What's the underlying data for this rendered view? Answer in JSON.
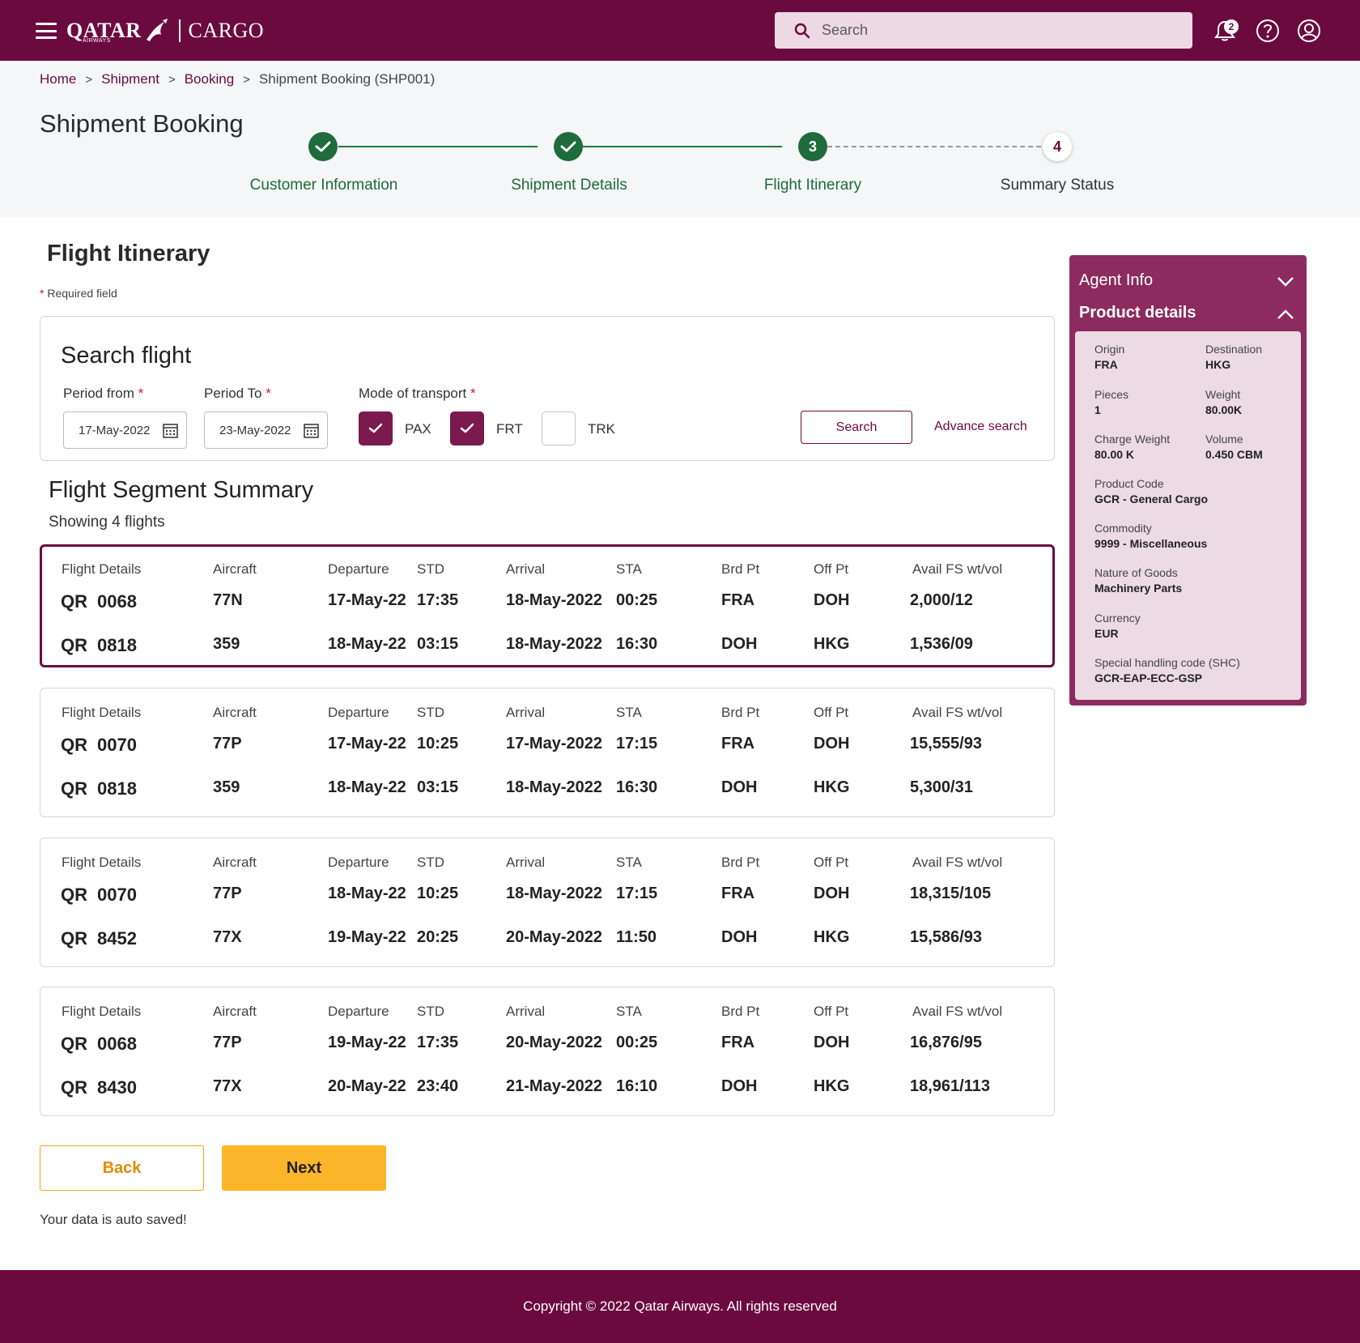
{
  "colors": {
    "brand": "#6b0a3f",
    "success": "#1e6b3c",
    "accent": "#fbb52b"
  },
  "header": {
    "brand_primary": "QATAR",
    "brand_sub": "AIRWAYS",
    "brand_product": "CARGO",
    "search_placeholder": "Search",
    "notification_count": "2",
    "icons": [
      "menu-icon",
      "search-icon",
      "bell-icon",
      "help-icon",
      "user-icon"
    ]
  },
  "breadcrumb": [
    "Home",
    "Shipment",
    "Booking",
    "Shipment Booking (SHP001)"
  ],
  "page_title": "Shipment Booking",
  "stepper": {
    "steps": [
      {
        "label": "Customer Information",
        "state": "done",
        "number": "1"
      },
      {
        "label": "Shipment Details",
        "state": "done",
        "number": "2"
      },
      {
        "label": "Flight Itinerary",
        "state": "active",
        "number": "3"
      },
      {
        "label": "Summary Status",
        "state": "todo",
        "number": "4"
      }
    ]
  },
  "main": {
    "section_title": "Flight Itinerary",
    "required_note": "Required field",
    "required_marker": "*",
    "search_panel": {
      "title": "Search flight",
      "period_from_label": "Period from",
      "period_from_value": "17-May-2022",
      "period_to_label": "Period To",
      "period_to_value": "23-May-2022",
      "mode_label": "Mode of transport",
      "modes": [
        {
          "label": "PAX",
          "checked": true
        },
        {
          "label": "FRT",
          "checked": true
        },
        {
          "label": "TRK",
          "checked": false
        }
      ],
      "search_button": "Search",
      "advance_search": "Advance search"
    },
    "segment_title": "Flight Segment Summary",
    "segment_subtitle": "Showing 4 flights",
    "columns": {
      "flight": "Flight Details",
      "aircraft": "Aircraft",
      "departure": "Departure",
      "std": "STD",
      "arrival": "Arrival",
      "sta": "STA",
      "brd": "Brd Pt",
      "off": "Off Pt",
      "avail": "Avail FS wt/vol"
    },
    "flights": [
      {
        "selected": true,
        "legs": [
          {
            "carrier": "QR",
            "number": "0068",
            "aircraft": "77N",
            "dep_date": "17-May-22",
            "std": "17:35",
            "arr_date": "18-May-2022",
            "sta": "00:25",
            "brd": "FRA",
            "off": "DOH",
            "avail": "2,000/12"
          },
          {
            "carrier": "QR",
            "number": "0818",
            "aircraft": "359",
            "dep_date": "18-May-22",
            "std": "03:15",
            "arr_date": "18-May-2022",
            "sta": "16:30",
            "brd": "DOH",
            "off": "HKG",
            "avail": "1,536/09"
          }
        ]
      },
      {
        "selected": false,
        "legs": [
          {
            "carrier": "QR",
            "number": "0070",
            "aircraft": "77P",
            "dep_date": "17-May-22",
            "std": "10:25",
            "arr_date": "17-May-2022",
            "sta": "17:15",
            "brd": "FRA",
            "off": "DOH",
            "avail": "15,555/93"
          },
          {
            "carrier": "QR",
            "number": "0818",
            "aircraft": "359",
            "dep_date": "18-May-22",
            "std": "03:15",
            "arr_date": "18-May-2022",
            "sta": "16:30",
            "brd": "DOH",
            "off": "HKG",
            "avail": "5,300/31"
          }
        ]
      },
      {
        "selected": false,
        "legs": [
          {
            "carrier": "QR",
            "number": "0070",
            "aircraft": "77P",
            "dep_date": "18-May-22",
            "std": "10:25",
            "arr_date": "18-May-2022",
            "sta": "17:15",
            "brd": "FRA",
            "off": "DOH",
            "avail": "18,315/105"
          },
          {
            "carrier": "QR",
            "number": "8452",
            "aircraft": "77X",
            "dep_date": "19-May-22",
            "std": "20:25",
            "arr_date": "20-May-2022",
            "sta": "11:50",
            "brd": "DOH",
            "off": "HKG",
            "avail": "15,586/93"
          }
        ]
      },
      {
        "selected": false,
        "legs": [
          {
            "carrier": "QR",
            "number": "0068",
            "aircraft": "77P",
            "dep_date": "19-May-22",
            "std": "17:35",
            "arr_date": "20-May-2022",
            "sta": "00:25",
            "brd": "FRA",
            "off": "DOH",
            "avail": "16,876/95"
          },
          {
            "carrier": "QR",
            "number": "8430",
            "aircraft": "77X",
            "dep_date": "20-May-22",
            "std": "23:40",
            "arr_date": "21-May-2022",
            "sta": "16:10",
            "brd": "DOH",
            "off": "HKG",
            "avail": "18,961/113"
          }
        ]
      }
    ],
    "back_button": "Back",
    "next_button": "Next",
    "autosave": "Your data is auto saved!"
  },
  "sidebar": {
    "agent_info": "Agent Info",
    "product_details": "Product details",
    "fields": [
      {
        "label": "Origin",
        "value": "FRA"
      },
      {
        "label": "Destination",
        "value": "HKG"
      },
      {
        "label": "Pieces",
        "value": "1"
      },
      {
        "label": "Weight",
        "value": "80.00K"
      },
      {
        "label": "Charge Weight",
        "value": "80.00 K"
      },
      {
        "label": "Volume",
        "value": "0.450 CBM"
      },
      {
        "label": "Product Code",
        "value": "GCR - General Cargo"
      },
      {
        "label": "Commodity",
        "value": "9999 - Miscellaneous"
      },
      {
        "label": "Nature of Goods",
        "value": "Machinery Parts"
      },
      {
        "label": "Currency",
        "value": "EUR"
      },
      {
        "label": "Special handling code (SHC)",
        "value": "GCR-EAP-ECC-GSP"
      }
    ]
  },
  "footer": {
    "copyright": "Copyright © 2022 Qatar Airways. All rights reserved"
  }
}
